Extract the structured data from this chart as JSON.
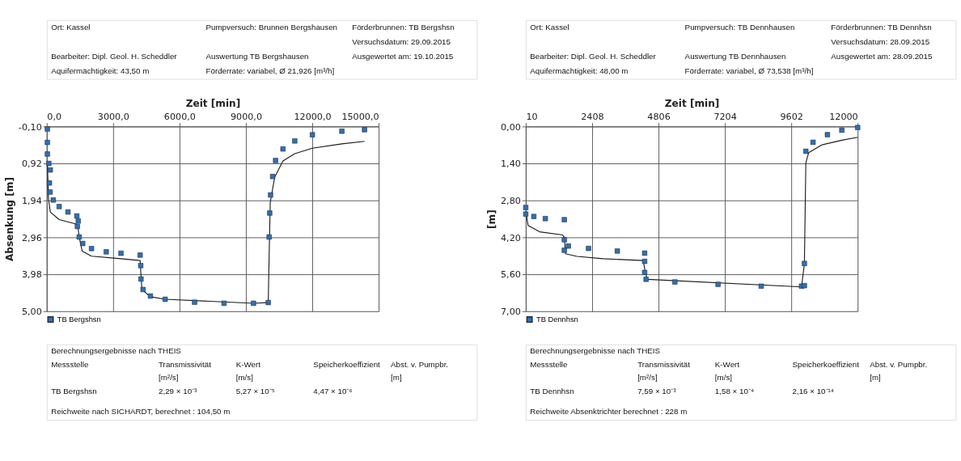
{
  "chart_data": [
    {
      "type": "scatter",
      "xlabel": "Zeit [min]",
      "ylabel": "Absenkung [m]",
      "xlim": [
        0,
        15000
      ],
      "xticks": [
        {
          "value": 0,
          "label": "0,0"
        },
        {
          "value": 3000,
          "label": "3000,0"
        },
        {
          "value": 6000,
          "label": "6000,0"
        },
        {
          "value": 9000,
          "label": "9000,0"
        },
        {
          "value": 12000,
          "label": "12000,0"
        },
        {
          "value": 15000,
          "label": "15000,0"
        }
      ],
      "ylim": [
        5.0,
        -0.1
      ],
      "yticks": [
        {
          "value": -0.1,
          "label": "-0,10"
        },
        {
          "value": 0.92,
          "label": "0,92"
        },
        {
          "value": 1.94,
          "label": "1,94"
        },
        {
          "value": 2.96,
          "label": "2,96"
        },
        {
          "value": 3.98,
          "label": "3,98"
        },
        {
          "value": 5.0,
          "label": "5,00"
        }
      ],
      "grid": true,
      "legend": "bottom left",
      "series": [
        {
          "name": "TB Bergshsn",
          "marker": "square",
          "color": "#2f6fb5",
          "x": [
            27,
            27,
            27,
            93,
            160,
            120,
            150,
            293,
            560,
            958,
            1358,
            1424,
            1384,
            1464,
            1624,
            2023,
            2688,
            3354,
            4219,
            4246,
            4259,
            4352,
            4685,
            5350,
            6682,
            8012,
            9343,
            10009,
            10049,
            10075,
            10115,
            10208,
            10342,
            10675,
            11207,
            12005,
            13336,
            14361
          ],
          "values": [
            -0.03,
            0.34,
            0.66,
            0.92,
            1.1,
            1.46,
            1.71,
            1.93,
            2.11,
            2.26,
            2.37,
            2.51,
            2.66,
            2.95,
            3.13,
            3.27,
            3.36,
            3.4,
            3.45,
            3.74,
            4.11,
            4.4,
            4.58,
            4.67,
            4.75,
            4.78,
            4.78,
            4.76,
            2.95,
            2.29,
            1.79,
            1.28,
            0.84,
            0.52,
            0.3,
            0.13,
            0.03,
            -0.01
          ]
        },
        {
          "type": "line",
          "color": "#1a1a1a",
          "x": [
            27,
            80,
            160,
            560,
            1358,
            1424,
            1464,
            1600,
            2023,
            3354,
            4219,
            4246,
            4300,
            4685,
            5350,
            9343,
            10009,
            10049,
            10100,
            10300,
            10675,
            11207,
            12005,
            13336,
            14361
          ],
          "values": [
            0.9,
            1.9,
            2.26,
            2.47,
            2.6,
            2.75,
            2.95,
            3.34,
            3.48,
            3.55,
            3.6,
            3.9,
            4.4,
            4.6,
            4.67,
            4.78,
            4.76,
            3.5,
            2.0,
            1.3,
            0.85,
            0.65,
            0.5,
            0.38,
            0.31
          ]
        }
      ],
      "annotations": [
        "Ort: Kassel",
        "Pumpversuch: Brunnen Bergshausen",
        "Förderbrunnen: TB Bergshsn",
        "Versuchsdatum: 29.09.2015",
        "Bearbeiter: Dipl. Geol. H. Scheddler",
        "Auswertung TB Bergshausen",
        "Ausgewertet am: 19.10.2015",
        "Aquifermächtigkeit: 43,50 m",
        "Förderrate: variabel, Ø 21,926 [m³/h]",
        "Berechnungsergebnisse nach THEIS",
        "Messstelle",
        "Transmissivität",
        "K-Wert",
        "Speicherkoeffizient",
        "Abst. v. Pumpbr.",
        "[m²/s]",
        "[m/s]",
        "[m]",
        "TB Bergshsn",
        "2,29 × 10⁻³",
        "5,27 × 10⁻⁵",
        "4,47 × 10⁻⁶",
        "Reichweite nach SICHARDT, berechnet : 104,50 m"
      ]
    },
    {
      "type": "scatter",
      "xlabel": "Zeit [min]",
      "ylabel": "[m]",
      "xlim": [
        10,
        12000
      ],
      "xticks": [
        {
          "value": 10,
          "label": "10"
        },
        {
          "value": 2408,
          "label": "2408"
        },
        {
          "value": 4806,
          "label": "4806"
        },
        {
          "value": 7204,
          "label": "7204"
        },
        {
          "value": 9602,
          "label": "9602"
        },
        {
          "value": 12000,
          "label": "12000"
        }
      ],
      "ylim": [
        7.0,
        0.0
      ],
      "yticks": [
        {
          "value": 0,
          "label": "0,00"
        },
        {
          "value": 1.4,
          "label": "1,40"
        },
        {
          "value": 2.8,
          "label": "2,80"
        },
        {
          "value": 4.2,
          "label": "4,20"
        },
        {
          "value": 5.6,
          "label": "5,60"
        },
        {
          "value": 7.0,
          "label": "7,00"
        }
      ],
      "grid": true,
      "legend": "bottom left",
      "series": [
        {
          "name": "TB Dennhsn",
          "marker": "square",
          "color": "#2f6fb5",
          "x": [
            10,
            10,
            301,
            717,
            1403,
            1403,
            1403,
            1549,
            2277,
            3317,
            4305,
            4305,
            4305,
            4357,
            5397,
            6956,
            8516,
            9972,
            10076,
            10076,
            10128,
            10388,
            10908,
            11428,
            12000
          ],
          "values": [
            3.07,
            3.32,
            3.41,
            3.49,
            3.53,
            4.29,
            4.69,
            4.53,
            4.62,
            4.72,
            4.8,
            5.11,
            5.53,
            5.79,
            5.89,
            5.98,
            6.05,
            6.05,
            6.03,
            5.19,
            0.94,
            0.6,
            0.31,
            0.14,
            0.04
          ]
        },
        {
          "type": "line",
          "color": "#1a1a1a",
          "x": [
            10,
            93,
            509,
            1341,
            1403,
            1445,
            1861,
            2797,
            4253,
            4330,
            4400,
            9972,
            10076,
            10128,
            10232,
            10700,
            11428,
            12000
          ],
          "values": [
            3.2,
            3.75,
            3.99,
            4.11,
            4.2,
            4.82,
            4.92,
            5.01,
            5.08,
            5.54,
            5.79,
            6.08,
            5.2,
            1.38,
            0.99,
            0.7,
            0.52,
            0.41
          ]
        }
      ],
      "annotations": [
        "Ort: Kassel",
        "Pumpversuch: TB Dennhausen",
        "Förderbrunnen: TB Dennhsn",
        "Versuchsdatum: 28.09.2015",
        "Bearbeiter: Dipl. Geol. H. Scheddler",
        "Auswertung TB Dennhausen",
        "Ausgewertet am: 28.09.2015",
        "Aquifermächtigkeit: 48,00 m",
        "Förderrate: variabel, Ø 73,538 [m³/h]",
        "Berechnungsergebnisse nach THEIS",
        "Messstelle",
        "Transmissivität",
        "K-Wert",
        "Speicherkoeffizient",
        "Abst. v. Pumpbr.",
        "[m²/s]",
        "[m/s]",
        "[m]",
        "TB Dennhsn",
        "7,59 × 10⁻³",
        "1,58 × 10⁻⁴",
        "2,16 × 10⁻¹⁴",
        "Reichweite Absenktrichter berechnet : 228 m"
      ]
    }
  ]
}
